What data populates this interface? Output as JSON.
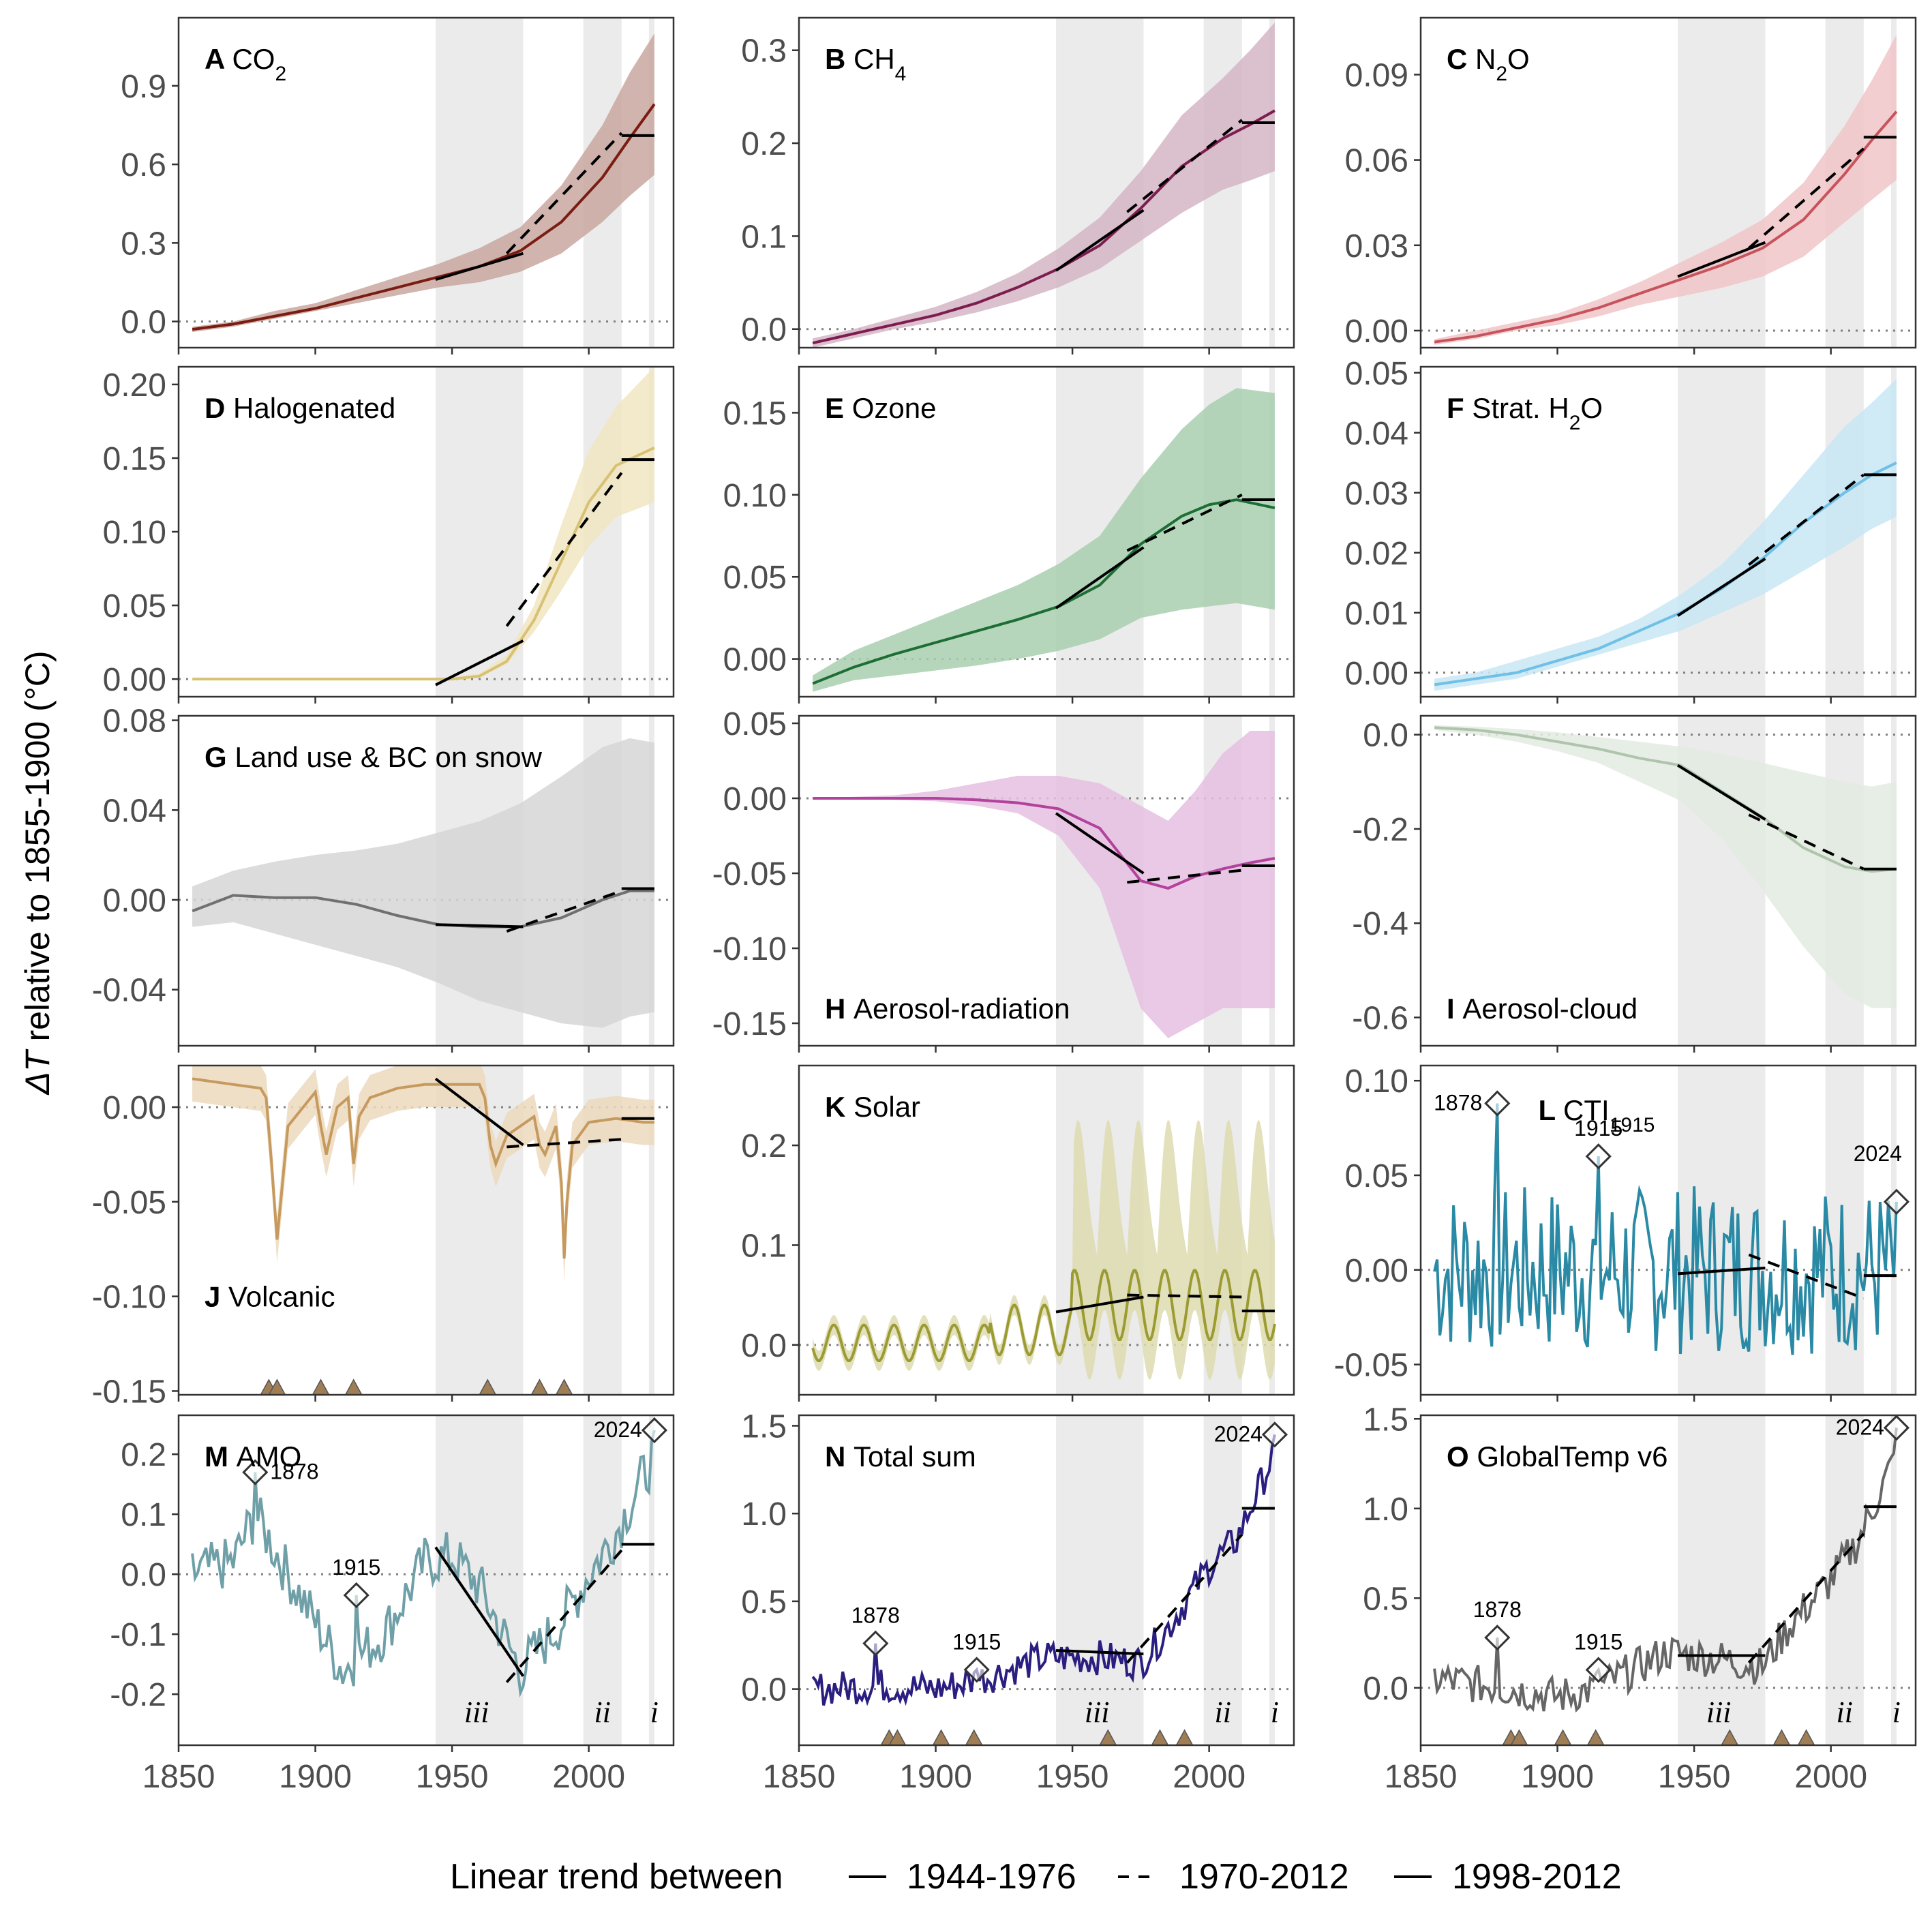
{
  "figure": {
    "y_label": "ΔT relative to 1855-1900 (°C)",
    "legend": {
      "title": "Linear trend between",
      "items": [
        {
          "label": "1944-1976",
          "style": "solid"
        },
        {
          "label": "1970-2012",
          "style": "dashed"
        },
        {
          "label": "1998-2012",
          "style": "solid"
        }
      ]
    },
    "period_labels": [
      "iii",
      "ii",
      "i"
    ],
    "shaded_periods": [
      [
        1944,
        1976
      ],
      [
        1998,
        2012
      ],
      [
        2022,
        2024
      ]
    ],
    "x_ticks": [
      1850,
      1900,
      1950,
      2000
    ],
    "xlim": [
      1850,
      2031
    ],
    "volcanic_eruption_years": [
      1883,
      1886,
      1902,
      1914,
      1963,
      1982,
      1991
    ],
    "colors": {
      "shade": "#ebebeb",
      "trend": "#000000",
      "zero_line": "#808080",
      "eruption_marker": "#a07e55"
    }
  },
  "chart_data": [
    {
      "panel": "A",
      "title": "CO",
      "sub": "2",
      "type": "area",
      "color": "#7a1c12",
      "band": "#c9a7a0",
      "ylim": [
        -0.1,
        1.16
      ],
      "yticks": [
        "0.0",
        "0.3",
        "0.6",
        "0.9"
      ],
      "ytick_values": [
        0,
        0.3,
        0.6,
        0.9
      ],
      "x": [
        1855,
        1870,
        1885,
        1900,
        1915,
        1930,
        1945,
        1960,
        1975,
        1990,
        2005,
        2015,
        2024
      ],
      "y": [
        -0.03,
        -0.01,
        0.02,
        0.05,
        0.09,
        0.13,
        0.17,
        0.21,
        0.27,
        0.38,
        0.55,
        0.7,
        0.83
      ],
      "band_lo": [
        -0.04,
        -0.02,
        0.01,
        0.04,
        0.07,
        0.1,
        0.13,
        0.15,
        0.19,
        0.26,
        0.38,
        0.48,
        0.56
      ],
      "band_hi": [
        -0.02,
        0.0,
        0.04,
        0.07,
        0.12,
        0.17,
        0.22,
        0.28,
        0.36,
        0.52,
        0.75,
        0.95,
        1.1
      ],
      "trends": {
        "t1": [
          0.16,
          0.26
        ],
        "t2": [
          0.26,
          0.72
        ],
        "t3": [
          0.71,
          0.71
        ]
      }
    },
    {
      "panel": "B",
      "title": "CH",
      "sub": "4",
      "type": "area",
      "color": "#7d1d4f",
      "band": "#d5b5c5",
      "ylim": [
        -0.02,
        0.335
      ],
      "yticks": [
        "0.0",
        "0.1",
        "0.2",
        "0.3"
      ],
      "ytick_values": [
        0,
        0.1,
        0.2,
        0.3
      ],
      "x": [
        1855,
        1870,
        1885,
        1900,
        1915,
        1930,
        1945,
        1960,
        1975,
        1990,
        2005,
        2015,
        2024
      ],
      "y": [
        -0.015,
        -0.005,
        0.005,
        0.015,
        0.028,
        0.045,
        0.065,
        0.09,
        0.13,
        0.175,
        0.205,
        0.22,
        0.235
      ],
      "band_lo": [
        -0.02,
        -0.01,
        0.0,
        0.008,
        0.018,
        0.03,
        0.045,
        0.065,
        0.095,
        0.125,
        0.15,
        0.16,
        0.17
      ],
      "band_hi": [
        -0.01,
        0.0,
        0.012,
        0.024,
        0.04,
        0.06,
        0.087,
        0.12,
        0.17,
        0.23,
        0.27,
        0.3,
        0.33
      ],
      "trends": {
        "t1": [
          0.063,
          0.128
        ],
        "t2": [
          0.126,
          0.225
        ],
        "t3": [
          0.222,
          0.222
        ]
      }
    },
    {
      "panel": "C",
      "title": "N",
      "sub": "2",
      "title2": "O",
      "type": "area",
      "color": "#c7535c",
      "band": "#f0c5c8",
      "ylim": [
        -0.006,
        0.11
      ],
      "yticks": [
        "0.00",
        "0.03",
        "0.06",
        "0.09"
      ],
      "ytick_values": [
        0,
        0.03,
        0.06,
        0.09
      ],
      "x": [
        1855,
        1870,
        1885,
        1900,
        1915,
        1930,
        1945,
        1960,
        1975,
        1990,
        2005,
        2015,
        2024
      ],
      "y": [
        -0.004,
        -0.002,
        0.001,
        0.004,
        0.008,
        0.013,
        0.018,
        0.023,
        0.029,
        0.039,
        0.055,
        0.067,
        0.077
      ],
      "band_lo": [
        -0.005,
        -0.003,
        0.0,
        0.002,
        0.005,
        0.009,
        0.012,
        0.015,
        0.019,
        0.026,
        0.038,
        0.046,
        0.053
      ],
      "band_hi": [
        -0.003,
        0.0,
        0.003,
        0.006,
        0.011,
        0.017,
        0.024,
        0.031,
        0.039,
        0.052,
        0.072,
        0.088,
        0.104
      ],
      "trends": {
        "t1": [
          0.019,
          0.031
        ],
        "t2": [
          0.029,
          0.064
        ],
        "t3": [
          0.068,
          0.068
        ]
      }
    },
    {
      "panel": "D",
      "title": "Halogenated",
      "type": "area",
      "color": "#d8c173",
      "band": "#f0e6c1",
      "ylim": [
        -0.012,
        0.212
      ],
      "yticks": [
        "0.00",
        "0.05",
        "0.10",
        "0.15",
        "0.20"
      ],
      "ytick_values": [
        0,
        0.05,
        0.1,
        0.15,
        0.2
      ],
      "x": [
        1855,
        1900,
        1930,
        1940,
        1950,
        1960,
        1970,
        1980,
        1990,
        2000,
        2010,
        2024
      ],
      "y": [
        0,
        0,
        0,
        0,
        0,
        0.002,
        0.012,
        0.04,
        0.08,
        0.12,
        0.145,
        0.157
      ],
      "band_lo": [
        0,
        0,
        0,
        0,
        0,
        0.001,
        0.01,
        0.032,
        0.06,
        0.09,
        0.11,
        0.12
      ],
      "band_hi": [
        0,
        0,
        0,
        0,
        0.001,
        0.004,
        0.016,
        0.05,
        0.105,
        0.155,
        0.185,
        0.212
      ],
      "trends": {
        "t1": [
          -0.004,
          0.026
        ],
        "t2": [
          0.036,
          0.14
        ],
        "t3": [
          0.149,
          0.149
        ]
      }
    },
    {
      "panel": "E",
      "title": "Ozone",
      "type": "area",
      "color": "#1c6e35",
      "band": "#a9cfb0",
      "ylim": [
        -0.023,
        0.178
      ],
      "yticks": [
        "0.00",
        "0.05",
        "0.10",
        "0.15"
      ],
      "ytick_values": [
        0,
        0.05,
        0.1,
        0.15
      ],
      "x": [
        1855,
        1870,
        1885,
        1900,
        1915,
        1930,
        1945,
        1960,
        1975,
        1990,
        2000,
        2010,
        2024
      ],
      "y": [
        -0.015,
        -0.005,
        0.003,
        0.01,
        0.017,
        0.024,
        0.032,
        0.045,
        0.07,
        0.087,
        0.094,
        0.097,
        0.092
      ],
      "band_lo": [
        -0.02,
        -0.013,
        -0.01,
        -0.007,
        -0.004,
        0.0,
        0.005,
        0.012,
        0.025,
        0.03,
        0.032,
        0.034,
        0.03
      ],
      "band_hi": [
        -0.01,
        0.005,
        0.015,
        0.025,
        0.035,
        0.045,
        0.058,
        0.075,
        0.11,
        0.14,
        0.155,
        0.165,
        0.162
      ],
      "trends": {
        "t1": [
          0.031,
          0.068
        ],
        "t2": [
          0.066,
          0.1
        ],
        "t3": [
          0.097,
          0.097
        ]
      }
    },
    {
      "panel": "F",
      "title": "Strat. H",
      "sub": "2",
      "title2": "O",
      "type": "area",
      "color": "#6fc0e6",
      "band": "#c8e6f5",
      "ylim": [
        -0.004,
        0.051
      ],
      "yticks": [
        "0.00",
        "0.01",
        "0.02",
        "0.03",
        "0.04",
        "0.05"
      ],
      "ytick_values": [
        0,
        0.01,
        0.02,
        0.03,
        0.04,
        0.05
      ],
      "x": [
        1855,
        1870,
        1885,
        1900,
        1915,
        1930,
        1945,
        1960,
        1975,
        1990,
        2005,
        2015,
        2024
      ],
      "y": [
        -0.002,
        -0.001,
        0.0,
        0.002,
        0.004,
        0.007,
        0.01,
        0.014,
        0.019,
        0.025,
        0.03,
        0.033,
        0.035
      ],
      "band_lo": [
        -0.003,
        -0.002,
        -0.001,
        0.001,
        0.003,
        0.005,
        0.007,
        0.01,
        0.013,
        0.017,
        0.021,
        0.024,
        0.026
      ],
      "band_hi": [
        -0.001,
        0.0,
        0.002,
        0.004,
        0.006,
        0.009,
        0.013,
        0.018,
        0.025,
        0.033,
        0.041,
        0.045,
        0.049
      ],
      "trends": {
        "t1": [
          0.0095,
          0.019
        ],
        "t2": [
          0.018,
          0.033
        ],
        "t3": [
          0.033,
          0.033
        ]
      }
    },
    {
      "panel": "G",
      "title": "Land use & BC on snow",
      "type": "area",
      "color": "#707070",
      "band": "#d6d6d6",
      "ylim": [
        -0.065,
        0.082
      ],
      "yticks": [
        "-0.04",
        "0.00",
        "0.04",
        "0.08"
      ],
      "ytick_values": [
        -0.04,
        0,
        0.04,
        0.08
      ],
      "x": [
        1855,
        1870,
        1885,
        1900,
        1915,
        1930,
        1945,
        1960,
        1975,
        1990,
        2005,
        2015,
        2024
      ],
      "y": [
        -0.005,
        0.002,
        0.001,
        0.001,
        -0.002,
        -0.007,
        -0.011,
        -0.012,
        -0.012,
        -0.008,
        0.0,
        0.004,
        0.004
      ],
      "band_lo": [
        -0.012,
        -0.01,
        -0.015,
        -0.02,
        -0.025,
        -0.03,
        -0.037,
        -0.045,
        -0.05,
        -0.055,
        -0.057,
        -0.052,
        -0.05
      ],
      "band_hi": [
        0.006,
        0.013,
        0.017,
        0.02,
        0.022,
        0.025,
        0.03,
        0.035,
        0.043,
        0.055,
        0.068,
        0.072,
        0.07
      ],
      "trends": {
        "t1": [
          -0.011,
          -0.012
        ],
        "t2": [
          -0.014,
          0.004
        ],
        "t3": [
          0.005,
          0.005
        ]
      }
    },
    {
      "panel": "H",
      "title": "Aerosol-radiation",
      "type": "area",
      "color": "#b2429c",
      "band": "#e5bfe0",
      "ylim": [
        -0.165,
        0.055
      ],
      "yticks": [
        "-0.15",
        "-0.10",
        "-0.05",
        "0.00",
        "0.05"
      ],
      "ytick_values": [
        -0.15,
        -0.1,
        -0.05,
        0,
        0.05
      ],
      "x": [
        1855,
        1870,
        1885,
        1900,
        1915,
        1930,
        1945,
        1960,
        1975,
        1985,
        1995,
        2005,
        2015,
        2024
      ],
      "y": [
        0,
        0,
        0,
        0,
        -0.001,
        -0.003,
        -0.007,
        -0.02,
        -0.055,
        -0.06,
        -0.052,
        -0.047,
        -0.043,
        -0.04
      ],
      "band_lo": [
        0,
        0,
        -0.001,
        -0.002,
        -0.005,
        -0.01,
        -0.025,
        -0.06,
        -0.14,
        -0.16,
        -0.15,
        -0.14,
        -0.14,
        -0.14
      ],
      "band_hi": [
        0,
        0.001,
        0.002,
        0.005,
        0.01,
        0.015,
        0.015,
        0.01,
        -0.005,
        -0.015,
        0.005,
        0.03,
        0.045,
        0.045
      ],
      "trends": {
        "t1": [
          -0.01,
          -0.05
        ],
        "t2": [
          -0.056,
          -0.048
        ],
        "t3": [
          -0.045,
          -0.045
        ]
      }
    },
    {
      "panel": "I",
      "title": "Aerosol-cloud",
      "type": "area",
      "color": "#aec5ac",
      "band": "#e3ebe2",
      "ylim": [
        -0.66,
        0.04
      ],
      "yticks": [
        "-0.6",
        "-0.4",
        "-0.2",
        "0.0"
      ],
      "ytick_values": [
        -0.6,
        -0.4,
        -0.2,
        0
      ],
      "x": [
        1855,
        1870,
        1885,
        1900,
        1915,
        1930,
        1945,
        1960,
        1975,
        1990,
        2005,
        2015,
        2024
      ],
      "y": [
        0.015,
        0.01,
        0.0,
        -0.015,
        -0.03,
        -0.05,
        -0.065,
        -0.12,
        -0.175,
        -0.24,
        -0.28,
        -0.29,
        -0.285
      ],
      "band_lo": [
        0.01,
        0.0,
        -0.015,
        -0.035,
        -0.06,
        -0.1,
        -0.14,
        -0.22,
        -0.33,
        -0.45,
        -0.55,
        -0.58,
        -0.58
      ],
      "band_hi": [
        0.02,
        0.017,
        0.012,
        0.005,
        -0.005,
        -0.015,
        -0.025,
        -0.04,
        -0.06,
        -0.08,
        -0.1,
        -0.11,
        -0.1
      ],
      "trends": {
        "t1": [
          -0.065,
          -0.18
        ],
        "t2": [
          -0.17,
          -0.285
        ],
        "t3": [
          -0.285,
          -0.285
        ]
      }
    },
    {
      "panel": "J",
      "title": "Volcanic",
      "type": "line",
      "color": "#c69a5e",
      "band": "#ecd9bd",
      "ylim": [
        -0.152,
        0.022
      ],
      "yticks": [
        "-0.15",
        "-0.10",
        "-0.05",
        "0.00"
      ],
      "ytick_values": [
        -0.15,
        -0.1,
        -0.05,
        0
      ],
      "x": [
        1855,
        1870,
        1880,
        1882,
        1884,
        1886,
        1890,
        1900,
        1902,
        1904,
        1908,
        1912,
        1914,
        1916,
        1920,
        1930,
        1940,
        1950,
        1960,
        1962,
        1964,
        1966,
        1970,
        1975,
        1980,
        1982,
        1984,
        1988,
        1990,
        1991,
        1992,
        1994,
        2000,
        2010,
        2020,
        2024
      ],
      "y": [
        0.015,
        0.012,
        0.01,
        0.005,
        -0.03,
        -0.07,
        -0.01,
        0.008,
        -0.01,
        -0.025,
        0.0,
        0.005,
        -0.03,
        -0.005,
        0.005,
        0.01,
        0.012,
        0.012,
        0.012,
        0.005,
        -0.02,
        -0.03,
        -0.015,
        -0.01,
        -0.005,
        -0.02,
        -0.025,
        -0.01,
        -0.04,
        -0.08,
        -0.05,
        -0.02,
        -0.008,
        -0.006,
        -0.008,
        -0.008
      ],
      "band_dy": 0.012,
      "trends": {
        "t1": [
          0.015,
          -0.02
        ],
        "t2": [
          -0.021,
          -0.017
        ],
        "t3": [
          -0.006,
          -0.006
        ]
      }
    },
    {
      "panel": "K",
      "title": "Solar",
      "type": "line",
      "color": "#9c9b33",
      "band": "#dedcb0",
      "ylim": [
        -0.05,
        0.28
      ],
      "yticks": [
        "0.0",
        "0.1",
        "0.2"
      ],
      "ytick_values": [
        0,
        0.1,
        0.2
      ],
      "trends": {
        "t1": [
          0.033,
          0.048
        ],
        "t2": [
          0.05,
          0.048
        ],
        "t3": [
          0.034,
          0.034
        ]
      }
    },
    {
      "panel": "L",
      "title": "CTI",
      "sub": "1915",
      "type": "line",
      "color": "#2a8aa5",
      "ylim": [
        -0.066,
        0.108
      ],
      "yticks": [
        "-0.05",
        "0.00",
        "0.05",
        "0.10"
      ],
      "ytick_values": [
        -0.05,
        0,
        0.05,
        0.1
      ],
      "annotations": [
        {
          "year": 1878,
          "label": "1878"
        },
        {
          "year": 1915,
          "label": "1915"
        },
        {
          "year": 2024,
          "label": "2024"
        }
      ],
      "trends": {
        "t1": [
          -0.002,
          0.001
        ],
        "t2": [
          0.008,
          -0.015
        ],
        "t3": [
          -0.003,
          -0.003
        ]
      }
    },
    {
      "panel": "M",
      "title": "AMO",
      "type": "line",
      "color": "#6fa0a8",
      "ylim": [
        -0.285,
        0.265
      ],
      "yticks": [
        "-0.2",
        "-0.1",
        "0.0",
        "0.1",
        "0.2"
      ],
      "ytick_values": [
        -0.2,
        -0.1,
        0,
        0.1,
        0.2
      ],
      "annotations": [
        {
          "year": 1878,
          "label": "1878"
        },
        {
          "year": 1915,
          "label": "1915"
        },
        {
          "year": 2024,
          "label": "2024"
        }
      ],
      "trends": {
        "t1": [
          0.045,
          -0.17
        ],
        "t2": [
          -0.18,
          0.04
        ],
        "t3": [
          0.05,
          0.05
        ]
      }
    },
    {
      "panel": "N",
      "title": "Total sum",
      "type": "line",
      "color": "#2a1f80",
      "ylim": [
        -0.32,
        1.56
      ],
      "yticks": [
        "0.0",
        "0.5",
        "1.0",
        "1.5"
      ],
      "ytick_values": [
        0,
        0.5,
        1,
        1.5
      ],
      "annotations": [
        {
          "year": 1878,
          "label": "1878"
        },
        {
          "year": 1915,
          "label": "1915"
        },
        {
          "year": 2024,
          "label": "2024"
        }
      ],
      "trends": {
        "t1": [
          0.22,
          0.2
        ],
        "t2": [
          0.15,
          0.88
        ],
        "t3": [
          1.03,
          1.03
        ]
      }
    },
    {
      "panel": "O",
      "title": "GlobalTemp v6",
      "type": "line",
      "color": "#666666",
      "ylim": [
        -0.32,
        1.52
      ],
      "yticks": [
        "0.0",
        "0.5",
        "1.0",
        "1.5"
      ],
      "ytick_values": [
        0,
        0.5,
        1,
        1.5
      ],
      "annotations": [
        {
          "year": 1878,
          "label": "1878"
        },
        {
          "year": 1915,
          "label": "1915"
        },
        {
          "year": 2024,
          "label": "2024"
        }
      ],
      "trends": {
        "t1": [
          0.18,
          0.18
        ],
        "t2": [
          0.14,
          0.86
        ],
        "t3": [
          1.01,
          1.01
        ]
      }
    }
  ]
}
